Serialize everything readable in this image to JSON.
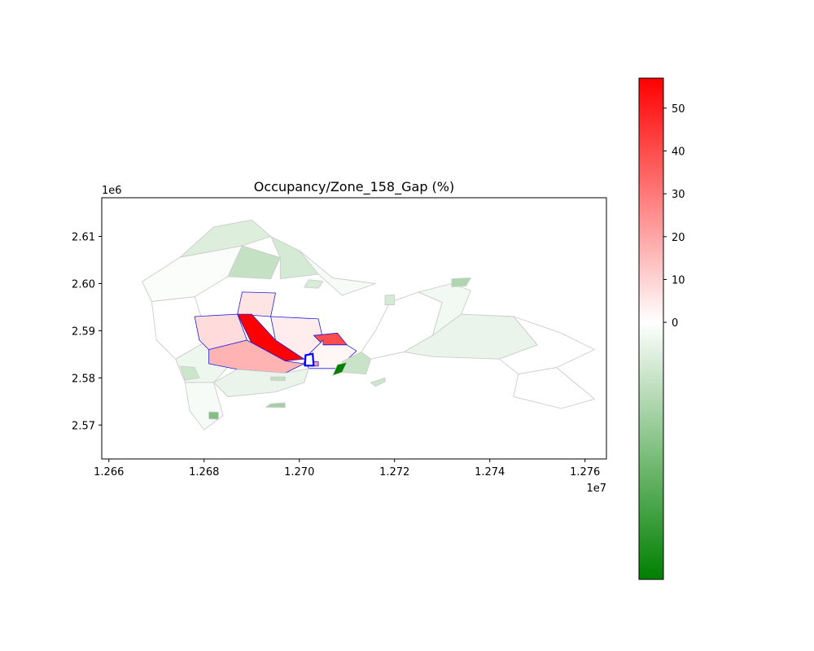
{
  "chart_data": {
    "type": "choropleth",
    "title": "Occupancy/Zone_158_Gap (%)",
    "xlabel": "",
    "ylabel": "",
    "x_offset_label": "1e7",
    "y_offset_label": "1e6",
    "xlim": [
      1.26585,
      1.27645
    ],
    "ylim": [
      2.5628,
      2.6182
    ],
    "x_ticks": [
      {
        "value": 1.266,
        "label": "1.266"
      },
      {
        "value": 1.268,
        "label": "1.268"
      },
      {
        "value": 1.27,
        "label": "1.270"
      },
      {
        "value": 1.272,
        "label": "1.272"
      },
      {
        "value": 1.274,
        "label": "1.274"
      },
      {
        "value": 1.276,
        "label": "1.276"
      }
    ],
    "y_ticks": [
      {
        "value": 2.57,
        "label": "2.57"
      },
      {
        "value": 2.58,
        "label": "2.58"
      },
      {
        "value": 2.59,
        "label": "2.59"
      },
      {
        "value": 2.6,
        "label": "2.60"
      },
      {
        "value": 2.61,
        "label": "2.61"
      }
    ],
    "grid": false,
    "colorbar": {
      "min": -60,
      "max": 57,
      "colors": [
        "#008000",
        "#ffffff",
        "#ff0000"
      ],
      "ticks": [
        {
          "value": 0,
          "label": "0"
        },
        {
          "value": 10,
          "label": "10"
        },
        {
          "value": 20,
          "label": "20"
        },
        {
          "value": 30,
          "label": "30"
        },
        {
          "value": 40,
          "label": "40"
        },
        {
          "value": 50,
          "label": "50"
        }
      ]
    },
    "focus_zone": "Zone_158",
    "zones": [
      {
        "id": "west-a",
        "value": -1,
        "points": [
          [
            1.2667,
            2.6004
          ],
          [
            1.2675,
            2.6056
          ],
          [
            1.2688,
            2.608
          ],
          [
            1.2685,
            2.6015
          ],
          [
            1.2678,
            2.5972
          ],
          [
            1.2669,
            2.5962
          ]
        ]
      },
      {
        "id": "west-b",
        "value": -8,
        "points": [
          [
            1.2675,
            2.6056
          ],
          [
            1.2682,
            2.612
          ],
          [
            1.269,
            2.6135
          ],
          [
            1.2694,
            2.61
          ],
          [
            1.2688,
            2.608
          ]
        ]
      },
      {
        "id": "west-c",
        "value": -14,
        "points": [
          [
            1.2685,
            2.6015
          ],
          [
            1.2688,
            2.608
          ],
          [
            1.2696,
            2.6055
          ],
          [
            1.2694,
            2.601
          ]
        ]
      },
      {
        "id": "west-d",
        "value": 0,
        "points": [
          [
            1.2669,
            2.5962
          ],
          [
            1.2678,
            2.5972
          ],
          [
            1.2681,
            2.588
          ],
          [
            1.2674,
            2.584
          ],
          [
            1.267,
            2.588
          ]
        ]
      },
      {
        "id": "west-e",
        "value": -4,
        "points": [
          [
            1.2674,
            2.584
          ],
          [
            1.2681,
            2.588
          ],
          [
            1.2687,
            2.5845
          ],
          [
            1.2682,
            2.579
          ],
          [
            1.2676,
            2.579
          ]
        ]
      },
      {
        "id": "west-f",
        "value": -2,
        "points": [
          [
            1.2676,
            2.579
          ],
          [
            1.2682,
            2.579
          ],
          [
            1.2684,
            2.572
          ],
          [
            1.268,
            2.569
          ],
          [
            1.2677,
            2.573
          ]
        ]
      },
      {
        "id": "west-g",
        "value": -12,
        "points": [
          [
            1.2675,
            2.5825
          ],
          [
            1.2678,
            2.5822
          ],
          [
            1.2679,
            2.58
          ],
          [
            1.2676,
            2.5795
          ]
        ]
      },
      {
        "id": "west-h",
        "value": -30,
        "points": [
          [
            1.2681,
            2.5728
          ],
          [
            1.2683,
            2.5727
          ],
          [
            1.2683,
            2.5712
          ],
          [
            1.2681,
            2.5713
          ]
        ]
      },
      {
        "id": "north-a",
        "value": -10,
        "points": [
          [
            1.2694,
            2.61
          ],
          [
            1.27,
            2.607
          ],
          [
            1.2704,
            2.602
          ],
          [
            1.2696,
            2.601
          ],
          [
            1.2696,
            2.6055
          ]
        ]
      },
      {
        "id": "north-b",
        "value": -2,
        "points": [
          [
            1.27,
            2.607
          ],
          [
            1.2707,
            2.6012
          ],
          [
            1.2716,
            2.6
          ],
          [
            1.2709,
            2.5975
          ],
          [
            1.2704,
            2.602
          ]
        ]
      },
      {
        "id": "north-c",
        "value": -9,
        "points": [
          [
            1.2702,
            2.6008
          ],
          [
            1.2705,
            2.6005
          ],
          [
            1.2704,
            2.599
          ],
          [
            1.2701,
            2.5992
          ]
        ]
      },
      {
        "id": "hl-north",
        "value": 6,
        "hl": true,
        "points": [
          [
            1.2688,
            2.5982
          ],
          [
            1.2695,
            2.598
          ],
          [
            1.2694,
            2.593
          ],
          [
            1.2687,
            2.5935
          ]
        ]
      },
      {
        "id": "hl-west",
        "value": 8,
        "hl": true,
        "points": [
          [
            1.2678,
            2.593
          ],
          [
            1.2687,
            2.5935
          ],
          [
            1.2689,
            2.588
          ],
          [
            1.2681,
            2.586
          ],
          [
            1.2679,
            2.588
          ]
        ]
      },
      {
        "id": "hl-red-strip",
        "value": 57,
        "hl": true,
        "points": [
          [
            1.2687,
            2.5935
          ],
          [
            1.269,
            2.5935
          ],
          [
            1.2695,
            2.588
          ],
          [
            1.2701,
            2.584
          ],
          [
            1.2697,
            2.5836
          ],
          [
            1.269,
            2.5873
          ]
        ]
      },
      {
        "id": "hl-south",
        "value": 17,
        "hl": true,
        "points": [
          [
            1.2681,
            2.586
          ],
          [
            1.2689,
            2.588
          ],
          [
            1.2697,
            2.5836
          ],
          [
            1.2701,
            2.583
          ],
          [
            1.2697,
            2.581
          ],
          [
            1.2687,
            2.5818
          ],
          [
            1.2681,
            2.583
          ]
        ]
      },
      {
        "id": "hl-center",
        "value": 4,
        "hl": true,
        "points": [
          [
            1.2694,
            2.593
          ],
          [
            1.2704,
            2.5925
          ],
          [
            1.2705,
            2.588
          ],
          [
            1.2701,
            2.584
          ],
          [
            1.2695,
            2.588
          ]
        ]
      },
      {
        "id": "hl-east-red",
        "value": 40,
        "hl": true,
        "points": [
          [
            1.2703,
            2.589
          ],
          [
            1.2708,
            2.5895
          ],
          [
            1.271,
            2.587
          ],
          [
            1.2705,
            2.587
          ]
        ]
      },
      {
        "id": "hl-east",
        "value": 2,
        "hl": true,
        "points": [
          [
            1.2705,
            2.587
          ],
          [
            1.271,
            2.587
          ],
          [
            1.2712,
            2.5857
          ],
          [
            1.2708,
            2.582
          ],
          [
            1.2702,
            2.582
          ],
          [
            1.2701,
            2.584
          ],
          [
            1.2705,
            2.588
          ]
        ]
      },
      {
        "id": "hl-sliver",
        "value": 22,
        "hl": true,
        "points": [
          [
            1.2701,
            2.5835
          ],
          [
            1.2704,
            2.5834
          ],
          [
            1.2704,
            2.5825
          ],
          [
            1.2701,
            2.5826
          ]
        ]
      },
      {
        "id": "east-green",
        "value": -13,
        "points": [
          [
            1.2709,
            2.5835
          ],
          [
            1.2713,
            2.5855
          ],
          [
            1.2715,
            2.584
          ],
          [
            1.2714,
            2.5808
          ],
          [
            1.2709,
            2.5812
          ]
        ]
      },
      {
        "id": "east-dark",
        "value": -60,
        "points": [
          [
            1.2707,
            2.5805
          ],
          [
            1.2709,
            2.5812
          ],
          [
            1.271,
            2.5833
          ],
          [
            1.2708,
            2.5828
          ]
        ]
      },
      {
        "id": "south-a",
        "value": -5,
        "points": [
          [
            1.2682,
            2.579
          ],
          [
            1.2687,
            2.5818
          ],
          [
            1.2697,
            2.581
          ],
          [
            1.2702,
            2.582
          ],
          [
            1.2701,
            2.579
          ],
          [
            1.2695,
            2.577
          ],
          [
            1.2685,
            2.576
          ]
        ]
      },
      {
        "id": "south-b",
        "value": -22,
        "points": [
          [
            1.2694,
            2.5745
          ],
          [
            1.2697,
            2.5747
          ],
          [
            1.2697,
            2.5737
          ],
          [
            1.2693,
            2.5738
          ]
        ]
      },
      {
        "id": "south-c",
        "value": -15,
        "points": [
          [
            1.2694,
            2.5802
          ],
          [
            1.2697,
            2.5802
          ],
          [
            1.2697,
            2.5794
          ],
          [
            1.2694,
            2.5795
          ]
        ]
      },
      {
        "id": "east-1",
        "value": 0,
        "points": [
          [
            1.2713,
            2.5855
          ],
          [
            1.2716,
            2.59
          ],
          [
            1.2719,
            2.596
          ],
          [
            1.2725,
            2.5982
          ],
          [
            1.273,
            2.596
          ],
          [
            1.2728,
            2.589
          ],
          [
            1.2722,
            2.5855
          ],
          [
            1.2715,
            2.584
          ]
        ]
      },
      {
        "id": "east-2",
        "value": -3,
        "points": [
          [
            1.2725,
            2.5982
          ],
          [
            1.2732,
            2.6
          ],
          [
            1.2736,
            2.5985
          ],
          [
            1.2734,
            2.5935
          ],
          [
            1.2728,
            2.589
          ],
          [
            1.273,
            2.596
          ]
        ]
      },
      {
        "id": "east-3",
        "value": -19,
        "points": [
          [
            1.2732,
            2.601
          ],
          [
            1.2736,
            2.6012
          ],
          [
            1.2735,
            2.5995
          ],
          [
            1.2732,
            2.5993
          ]
        ]
      },
      {
        "id": "east-4",
        "value": -10,
        "points": [
          [
            1.2718,
            2.5975
          ],
          [
            1.272,
            2.5976
          ],
          [
            1.272,
            2.5955
          ],
          [
            1.2718,
            2.5955
          ]
        ]
      },
      {
        "id": "east-5",
        "value": -5,
        "points": [
          [
            1.2722,
            2.5855
          ],
          [
            1.2728,
            2.589
          ],
          [
            1.2734,
            2.5935
          ],
          [
            1.2745,
            2.593
          ],
          [
            1.275,
            2.587
          ],
          [
            1.2742,
            2.584
          ],
          [
            1.2728,
            2.5845
          ]
        ]
      },
      {
        "id": "east-6",
        "value": 0,
        "points": [
          [
            1.2742,
            2.584
          ],
          [
            1.275,
            2.587
          ],
          [
            1.2745,
            2.593
          ],
          [
            1.2755,
            2.5895
          ],
          [
            1.2762,
            2.586
          ],
          [
            1.2754,
            2.5822
          ],
          [
            1.2746,
            2.5808
          ]
        ]
      },
      {
        "id": "east-7",
        "value": -12,
        "points": [
          [
            1.2715,
            2.579
          ],
          [
            1.2718,
            2.58
          ],
          [
            1.2718,
            2.5792
          ],
          [
            1.2716,
            2.5782
          ]
        ]
      },
      {
        "id": "east-8",
        "value": 0,
        "points": [
          [
            1.2746,
            2.5808
          ],
          [
            1.2754,
            2.5822
          ],
          [
            1.2762,
            2.5755
          ],
          [
            1.2755,
            2.5735
          ],
          [
            1.2745,
            2.576
          ]
        ]
      }
    ]
  }
}
